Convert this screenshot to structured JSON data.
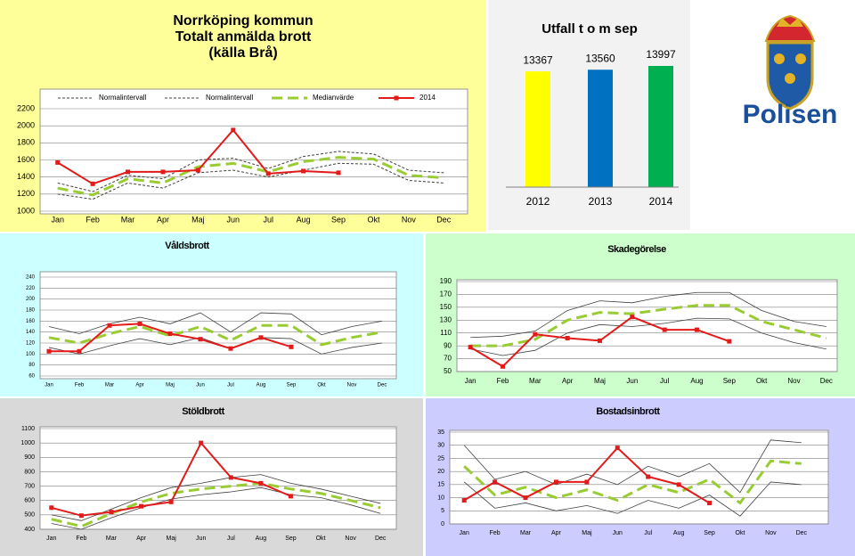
{
  "logo": {
    "text": "Polisen"
  },
  "chart_data": [
    {
      "type": "line",
      "title": [
        "Norrköping kommun",
        "Totalt anmälda brott",
        "(källa Brå)"
      ],
      "categories": [
        "Jan",
        "Feb",
        "Mar",
        "Apr",
        "Maj",
        "Jun",
        "Jul",
        "Aug",
        "Sep",
        "Okt",
        "Nov",
        "Dec"
      ],
      "ylim": [
        1000,
        2200
      ],
      "yticks": [
        1000,
        1200,
        1400,
        1600,
        1800,
        2000,
        2200
      ],
      "grid": true,
      "legend": "top",
      "series": [
        {
          "name": "Normalintervall",
          "color": "#404040",
          "dash": "3,2",
          "width": 1,
          "values": [
            1330,
            1230,
            1420,
            1380,
            1600,
            1620,
            1500,
            1640,
            1700,
            1670,
            1480,
            1450
          ]
        },
        {
          "name": "Normalintervall",
          "color": "#404040",
          "dash": "3,2",
          "width": 1,
          "values": [
            1200,
            1140,
            1330,
            1270,
            1450,
            1480,
            1400,
            1480,
            1560,
            1550,
            1360,
            1330
          ]
        },
        {
          "name": "Medianvärde",
          "color": "#99cc33",
          "dash": "12,6",
          "width": 3,
          "values": [
            1270,
            1190,
            1380,
            1330,
            1520,
            1560,
            1460,
            1580,
            1630,
            1610,
            1420,
            1390
          ]
        },
        {
          "name": "2014",
          "color": "#e31a1a",
          "width": 2,
          "markers": true,
          "values": [
            1570,
            1320,
            1460,
            1460,
            1480,
            1950,
            1440,
            1470,
            1450,
            null,
            null,
            null
          ]
        }
      ]
    },
    {
      "type": "bar",
      "title": "Utfall t o m sep",
      "categories": [
        "2012",
        "2013",
        "2014"
      ],
      "values": [
        13367,
        13560,
        13997
      ],
      "colors": [
        "#ffff00",
        "#0070c0",
        "#00b050"
      ]
    },
    {
      "type": "line",
      "title": "Våldsbrott",
      "categories": [
        "Jan",
        "Feb",
        "Mar",
        "Apr",
        "Maj",
        "Jun",
        "Jul",
        "Aug",
        "Sep",
        "Okt",
        "Nov",
        "Dec"
      ],
      "ylim": [
        60,
        240
      ],
      "yticks": [
        60,
        80,
        100,
        120,
        140,
        160,
        180,
        200,
        220,
        240
      ],
      "grid": true,
      "series": [
        {
          "color": "#404040",
          "width": 0.8,
          "values": [
            150,
            137,
            155,
            167,
            155,
            175,
            140,
            175,
            173,
            135,
            150,
            160
          ]
        },
        {
          "color": "#404040",
          "width": 0.8,
          "values": [
            112,
            100,
            115,
            128,
            117,
            130,
            110,
            130,
            128,
            100,
            112,
            120
          ]
        },
        {
          "color": "#99cc33",
          "dash": "12,6",
          "width": 3,
          "values": [
            130,
            120,
            137,
            150,
            133,
            150,
            125,
            152,
            152,
            117,
            130,
            140
          ]
        },
        {
          "color": "#e31a1a",
          "width": 2,
          "markers": true,
          "values": [
            105,
            105,
            152,
            155,
            137,
            127,
            110,
            130,
            113,
            null,
            null,
            null
          ]
        }
      ]
    },
    {
      "type": "line",
      "title": "Skadegörelse",
      "categories": [
        "Jan",
        "Feb",
        "Mar",
        "Apr",
        "Maj",
        "Jun",
        "Jul",
        "Aug",
        "Sep",
        "Okt",
        "Nov",
        "Dec"
      ],
      "ylim": [
        50,
        190
      ],
      "yticks": [
        50,
        70,
        90,
        110,
        130,
        150,
        170,
        190
      ],
      "grid": true,
      "series": [
        {
          "color": "#404040",
          "width": 0.8,
          "values": [
            103,
            105,
            113,
            145,
            160,
            157,
            167,
            173,
            173,
            145,
            128,
            120
          ]
        },
        {
          "color": "#404040",
          "width": 0.8,
          "values": [
            85,
            75,
            83,
            110,
            123,
            120,
            125,
            133,
            132,
            110,
            95,
            85
          ]
        },
        {
          "color": "#99cc33",
          "dash": "12,6",
          "width": 3,
          "values": [
            90,
            90,
            100,
            130,
            142,
            140,
            147,
            153,
            153,
            128,
            115,
            102
          ]
        },
        {
          "color": "#e31a1a",
          "width": 2,
          "markers": true,
          "values": [
            88,
            58,
            108,
            102,
            98,
            135,
            115,
            115,
            97,
            null,
            null,
            null
          ]
        }
      ]
    },
    {
      "type": "line",
      "title": "Stöldbrott",
      "categories": [
        "Jan",
        "Feb",
        "Mar",
        "Apr",
        "Maj",
        "Jun",
        "Jul",
        "Aug",
        "Sep",
        "Okt",
        "Nov",
        "Dec"
      ],
      "ylim": [
        400,
        1100
      ],
      "yticks": [
        400,
        500,
        600,
        700,
        800,
        900,
        1000,
        1100
      ],
      "grid": true,
      "series": [
        {
          "color": "#404040",
          "width": 0.8,
          "values": [
            500,
            460,
            540,
            620,
            690,
            720,
            760,
            780,
            720,
            680,
            630,
            580
          ]
        },
        {
          "color": "#404040",
          "width": 0.8,
          "values": [
            440,
            400,
            480,
            550,
            610,
            640,
            660,
            690,
            640,
            620,
            570,
            510
          ]
        },
        {
          "color": "#99cc33",
          "dash": "12,6",
          "width": 3,
          "values": [
            470,
            420,
            510,
            590,
            650,
            680,
            700,
            720,
            680,
            650,
            600,
            550
          ]
        },
        {
          "color": "#e31a1a",
          "width": 2,
          "markers": true,
          "values": [
            550,
            495,
            520,
            560,
            590,
            1000,
            760,
            720,
            630,
            null,
            null,
            null
          ]
        }
      ]
    },
    {
      "type": "line",
      "title": "Bostadsinbrott",
      "categories": [
        "Jan",
        "Feb",
        "Mar",
        "Apr",
        "Maj",
        "Jun",
        "Jul",
        "Aug",
        "Sep",
        "Okt",
        "Nov",
        "Dec"
      ],
      "ylim": [
        0,
        35
      ],
      "yticks": [
        0,
        5,
        10,
        15,
        20,
        25,
        30,
        35
      ],
      "grid": true,
      "series": [
        {
          "color": "#404040",
          "width": 0.8,
          "values": [
            30,
            17,
            20,
            15,
            19,
            15,
            22,
            18,
            23,
            12,
            32,
            31
          ]
        },
        {
          "color": "#404040",
          "width": 0.8,
          "values": [
            16,
            6,
            8,
            5,
            7,
            4,
            9,
            6,
            11,
            3,
            16,
            15
          ]
        },
        {
          "color": "#99cc33",
          "dash": "12,6",
          "width": 3,
          "values": [
            22,
            11,
            14,
            10,
            13,
            9,
            15,
            12,
            17,
            8,
            24,
            23
          ]
        },
        {
          "color": "#e31a1a",
          "width": 2,
          "markers": true,
          "values": [
            9,
            16,
            10,
            16,
            16,
            29,
            18,
            15,
            8,
            null,
            null,
            null
          ]
        }
      ]
    }
  ]
}
